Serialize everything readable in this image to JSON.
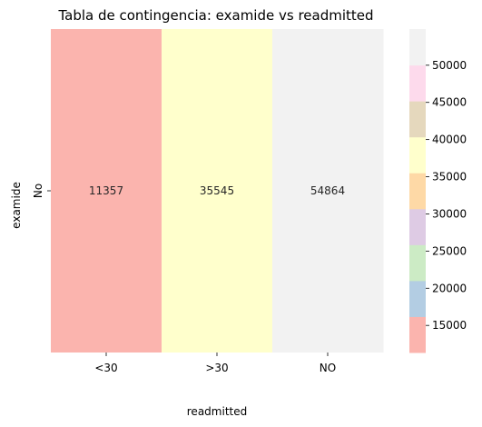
{
  "chart_data": {
    "type": "heatmap",
    "title": "Tabla de contingencia: examide vs readmitted",
    "xlabel": "readmitted",
    "ylabel": "examide",
    "x_categories": [
      "<30",
      ">30",
      "NO"
    ],
    "y_categories": [
      "No"
    ],
    "values": [
      [
        11357,
        35545,
        54864
      ]
    ],
    "colormap": "Pastel1",
    "colorbar": {
      "vmin": 11357,
      "vmax": 54864,
      "ticks": [
        15000,
        20000,
        25000,
        30000,
        35000,
        40000,
        45000,
        50000
      ],
      "colors": [
        "#fbb4ae",
        "#b3cde3",
        "#ccebc5",
        "#decbe4",
        "#fed9a6",
        "#ffffcc",
        "#e5d8bd",
        "#fddaec",
        "#f2f2f2"
      ]
    },
    "grid": false,
    "legend": "colorbar-right"
  }
}
